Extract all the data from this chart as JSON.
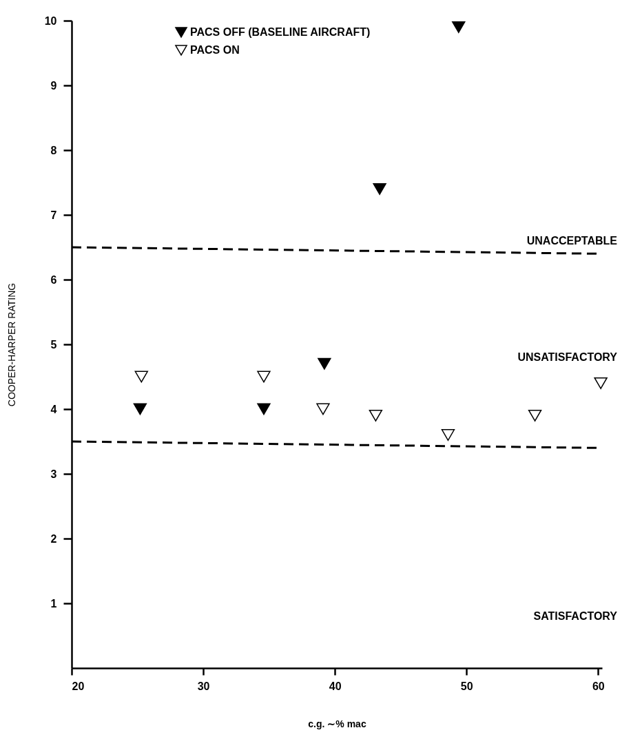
{
  "chart_data": {
    "type": "scatter",
    "xlabel": "c.g. ∼% mac",
    "ylabel": "COOPER-HARPER RATING",
    "xlim": [
      20,
      60.3
    ],
    "ylim": [
      0,
      10
    ],
    "xticks": [
      20,
      30,
      40,
      50,
      60
    ],
    "yticks": [
      1,
      2,
      3,
      4,
      5,
      6,
      7,
      8,
      9,
      10
    ],
    "grid": false,
    "legend": "top left",
    "series": [
      {
        "name": "PACS OFF (BASELINE AIRCRAFT)",
        "color": "#000000",
        "marker": "triangle",
        "x": [
          25.2,
          34.6,
          39.2,
          43.4,
          49.4
        ],
        "values": [
          4.0,
          4.0,
          4.7,
          7.4,
          9.9
        ]
      },
      {
        "name": "PACS ON",
        "color": "#ffffff",
        "marker": "triangle",
        "x": [
          25.3,
          34.6,
          39.1,
          43.1,
          48.6,
          55.2,
          60.2
        ],
        "values": [
          4.5,
          4.5,
          4.0,
          3.9,
          3.6,
          3.9,
          4.4
        ]
      },
      {
        "type": "line",
        "line_style": "dashed",
        "color": "#000000",
        "x": [
          20,
          60
        ],
        "values": [
          6.5,
          6.4
        ]
      },
      {
        "type": "line",
        "line_style": "dashed",
        "color": "#000000",
        "x": [
          20,
          60
        ],
        "values": [
          3.5,
          3.4
        ]
      }
    ],
    "annotations": [
      "UNACCEPTABLE",
      "UNSATISFACTORY",
      "SATISFACTORY"
    ]
  }
}
